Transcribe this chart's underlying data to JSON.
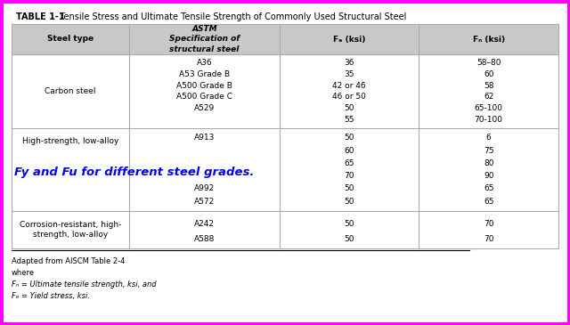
{
  "title_bold": "TABLE 1-1",
  "title_rest": "  Tensile Stress and Ultimate Tensile Strength of Commonly Used Structural Steel",
  "col_headers": [
    "Steel type",
    "ASTM\nSpecification of\nstructural steel",
    "Fₑ (ksi)",
    "Fₙ (ksi)"
  ],
  "carbon_astm": [
    "A36",
    "A53 Grade B",
    "A500 Grade B",
    "A500 Grade C",
    "A529",
    "",
    ""
  ],
  "carbon_fy": [
    "36",
    "35",
    "42 or 46",
    "46 or 50",
    "50",
    "55",
    ""
  ],
  "carbon_fu": [
    "58–80",
    "60",
    "58",
    "62",
    "65-100",
    "70-100",
    ""
  ],
  "high_astm": [
    "A913",
    "",
    "",
    "",
    "A992",
    "A572"
  ],
  "high_fy": [
    "50",
    "60",
    "65",
    "70",
    "50",
    "50"
  ],
  "high_fu": [
    "6",
    "75",
    "80",
    "90",
    "65",
    "65"
  ],
  "corr_astm": [
    "A242",
    "A588"
  ],
  "corr_fy": [
    "50",
    "50"
  ],
  "corr_fu": [
    "70",
    "70"
  ],
  "watermark_text": "Fy and Fu for different steel grades.",
  "watermark_color": "#0000EE",
  "footnote_lines": [
    "Adapted from AISCM Table 2-4",
    "where",
    "Fₙ = Ultimate tensile strength, ksi, and",
    "Fₑ = Yield stress, ksi."
  ],
  "border_color": "#AAAAAA",
  "header_bg": "#C8C8C8",
  "outer_border_color": "#FF00FF",
  "fig_bg": "#FFFFFF",
  "magenta_lw": 5,
  "table_lw": 0.8
}
